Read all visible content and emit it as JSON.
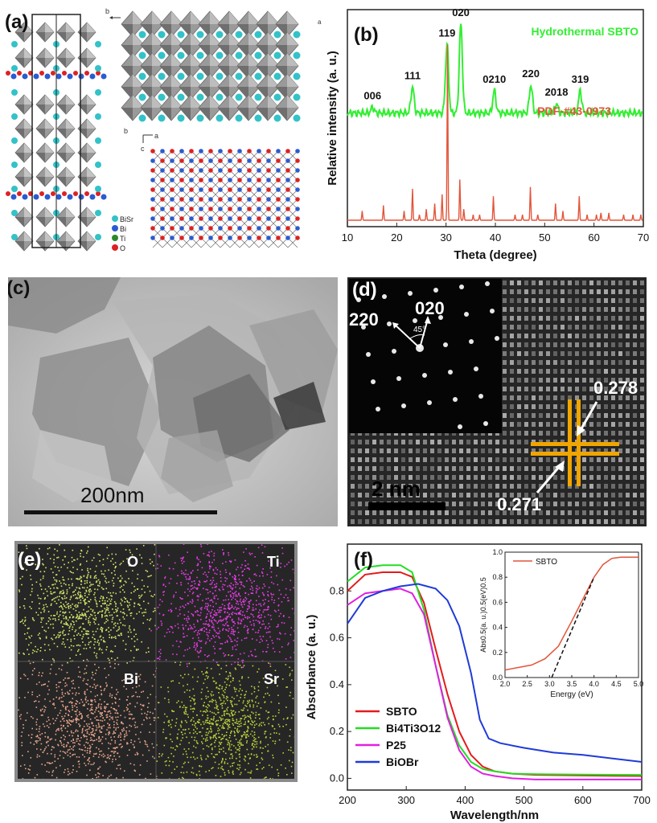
{
  "panel_a": {
    "label": "(a)",
    "axis_b_top": "b",
    "axis_a_top": "a",
    "axis_b_mid": "b",
    "axis_a_mid": "a",
    "axis_c_mid": "c",
    "legend": [
      "BiSr",
      "Bi",
      "Ti",
      "O"
    ],
    "colors": {
      "bisr": "#33c2c8",
      "bi": "#2a5bd0",
      "ti": "#2a8a2a",
      "o": "#dd2222",
      "octa": "#8a8a8a"
    }
  },
  "panel_b": {
    "label": "(b)"
  },
  "panel_c": {
    "label": "(c)",
    "scalebar": "200nm"
  },
  "panel_d": {
    "label": "(d)",
    "saed_220": "220",
    "saed_020": "020",
    "angle": "45°",
    "spacing_top": "0.278",
    "spacing_bottom": "0.271",
    "scalebar": "2 nm",
    "cross_color": "#f0a500"
  },
  "panel_e": {
    "label": "(e)",
    "maps": [
      {
        "element": "O",
        "color": "#d7e66a"
      },
      {
        "element": "Ti",
        "color": "#e83be8"
      },
      {
        "element": "Bi",
        "color": "#e7a58a"
      },
      {
        "element": "Sr",
        "color": "#b9d23a"
      }
    ]
  },
  "panel_f": {
    "label": "(f)"
  },
  "chart_data": [
    {
      "id": "xrd",
      "type": "line",
      "title": "",
      "xlabel": "Theta (degree)",
      "ylabel": "Relative intensity (a. u.)",
      "xlim": [
        10,
        70
      ],
      "xticks": [
        10,
        20,
        30,
        40,
        50,
        60,
        70
      ],
      "series": [
        {
          "name": "Hydrothermal SBTO",
          "color": "#33ee33",
          "baseline": 0.58,
          "peaks": [
            {
              "x": 15.1,
              "h": 0.03,
              "label": "006"
            },
            {
              "x": 23.2,
              "h": 0.14,
              "label": "111"
            },
            {
              "x": 30.2,
              "h": 0.37,
              "label": "119"
            },
            {
              "x": 33.0,
              "h": 0.48,
              "label": "020"
            },
            {
              "x": 39.8,
              "h": 0.12,
              "label": "0210"
            },
            {
              "x": 47.2,
              "h": 0.15,
              "label": "220"
            },
            {
              "x": 52.4,
              "h": 0.05,
              "label": "2018"
            },
            {
              "x": 57.2,
              "h": 0.12,
              "label": "319"
            }
          ]
        },
        {
          "name": "PDF-#43-0973",
          "color": "#e2553a",
          "baseline": 0.0,
          "peaks": [
            {
              "x": 13.0,
              "h": 0.05
            },
            {
              "x": 17.3,
              "h": 0.08
            },
            {
              "x": 21.5,
              "h": 0.05
            },
            {
              "x": 23.2,
              "h": 0.17
            },
            {
              "x": 24.6,
              "h": 0.03
            },
            {
              "x": 26.0,
              "h": 0.06
            },
            {
              "x": 27.7,
              "h": 0.09
            },
            {
              "x": 29.2,
              "h": 0.14
            },
            {
              "x": 30.3,
              "h": 0.95
            },
            {
              "x": 32.8,
              "h": 0.22
            },
            {
              "x": 33.6,
              "h": 0.06
            },
            {
              "x": 35.5,
              "h": 0.03
            },
            {
              "x": 36.8,
              "h": 0.03
            },
            {
              "x": 39.6,
              "h": 0.13
            },
            {
              "x": 44.0,
              "h": 0.03
            },
            {
              "x": 45.5,
              "h": 0.03
            },
            {
              "x": 47.1,
              "h": 0.18
            },
            {
              "x": 48.6,
              "h": 0.03
            },
            {
              "x": 52.2,
              "h": 0.09
            },
            {
              "x": 53.7,
              "h": 0.05
            },
            {
              "x": 57.0,
              "h": 0.13
            },
            {
              "x": 58.6,
              "h": 0.03
            },
            {
              "x": 60.5,
              "h": 0.03
            },
            {
              "x": 61.4,
              "h": 0.04
            },
            {
              "x": 63.0,
              "h": 0.04
            },
            {
              "x": 66.0,
              "h": 0.03
            },
            {
              "x": 67.9,
              "h": 0.03
            },
            {
              "x": 69.5,
              "h": 0.03
            }
          ]
        }
      ]
    },
    {
      "id": "uvvis",
      "type": "line",
      "xlabel": "Wavelength/nm",
      "ylabel": "Absorbance (a. u.)",
      "xlim": [
        200,
        700
      ],
      "ylim": [
        -0.05,
        1.0
      ],
      "xticks": [
        200,
        300,
        400,
        500,
        600,
        700
      ],
      "yticks": [
        0.0,
        0.2,
        0.4,
        0.6,
        0.8
      ],
      "series": [
        {
          "name": "SBTO",
          "color": "#e41a1c",
          "x": [
            200,
            230,
            260,
            290,
            310,
            330,
            350,
            370,
            390,
            410,
            430,
            450,
            480,
            520,
            600,
            700
          ],
          "y": [
            0.8,
            0.87,
            0.88,
            0.88,
            0.86,
            0.75,
            0.55,
            0.36,
            0.2,
            0.1,
            0.05,
            0.03,
            0.02,
            0.015,
            0.012,
            0.01
          ]
        },
        {
          "name": "Bi4Ti3O12",
          "color": "#22dd22",
          "x": [
            200,
            230,
            260,
            290,
            310,
            330,
            350,
            370,
            390,
            410,
            430,
            450,
            480,
            520,
            600,
            700
          ],
          "y": [
            0.84,
            0.9,
            0.91,
            0.91,
            0.88,
            0.72,
            0.48,
            0.27,
            0.14,
            0.07,
            0.04,
            0.03,
            0.02,
            0.018,
            0.016,
            0.015
          ]
        },
        {
          "name": "P25",
          "color": "#e020e0",
          "x": [
            200,
            230,
            260,
            290,
            310,
            330,
            350,
            370,
            390,
            410,
            430,
            450,
            480,
            520,
            600,
            700
          ],
          "y": [
            0.74,
            0.79,
            0.8,
            0.81,
            0.79,
            0.7,
            0.48,
            0.26,
            0.12,
            0.05,
            0.02,
            0.01,
            0.0,
            -0.005,
            -0.005,
            -0.005
          ]
        },
        {
          "name": "BiOBr",
          "color": "#1f3bd8",
          "x": [
            200,
            230,
            260,
            290,
            320,
            350,
            370,
            390,
            410,
            425,
            440,
            460,
            500,
            550,
            600,
            700
          ],
          "y": [
            0.66,
            0.77,
            0.8,
            0.82,
            0.83,
            0.81,
            0.76,
            0.65,
            0.45,
            0.25,
            0.17,
            0.15,
            0.13,
            0.11,
            0.1,
            0.07
          ]
        }
      ],
      "legend_labels": [
        "SBTO",
        "Bi4Ti3O12",
        "P25",
        "BiOBr"
      ]
    },
    {
      "id": "tauc_inset",
      "type": "line",
      "xlabel": "Energy (eV)",
      "ylabel": "Abs0.5(a. u.)0.5(eV)0.5",
      "xlim": [
        2.0,
        5.0
      ],
      "ylim": [
        0.0,
        1.0
      ],
      "xticks": [
        2.0,
        2.5,
        3.0,
        3.5,
        4.0,
        4.5,
        5.0
      ],
      "yticks": [
        0.0,
        0.2,
        0.4,
        0.6,
        0.8,
        1.0
      ],
      "series": [
        {
          "name": "SBTO",
          "color": "#e2553a",
          "x": [
            2.0,
            2.3,
            2.6,
            2.9,
            3.2,
            3.5,
            3.8,
            4.0,
            4.2,
            4.4,
            4.6,
            5.0
          ],
          "y": [
            0.06,
            0.08,
            0.1,
            0.15,
            0.25,
            0.45,
            0.66,
            0.8,
            0.9,
            0.95,
            0.96,
            0.96
          ]
        },
        {
          "name": "fit",
          "color": "#111111",
          "dash": true,
          "x": [
            3.05,
            4.0
          ],
          "y": [
            0.0,
            0.8
          ]
        }
      ]
    }
  ]
}
